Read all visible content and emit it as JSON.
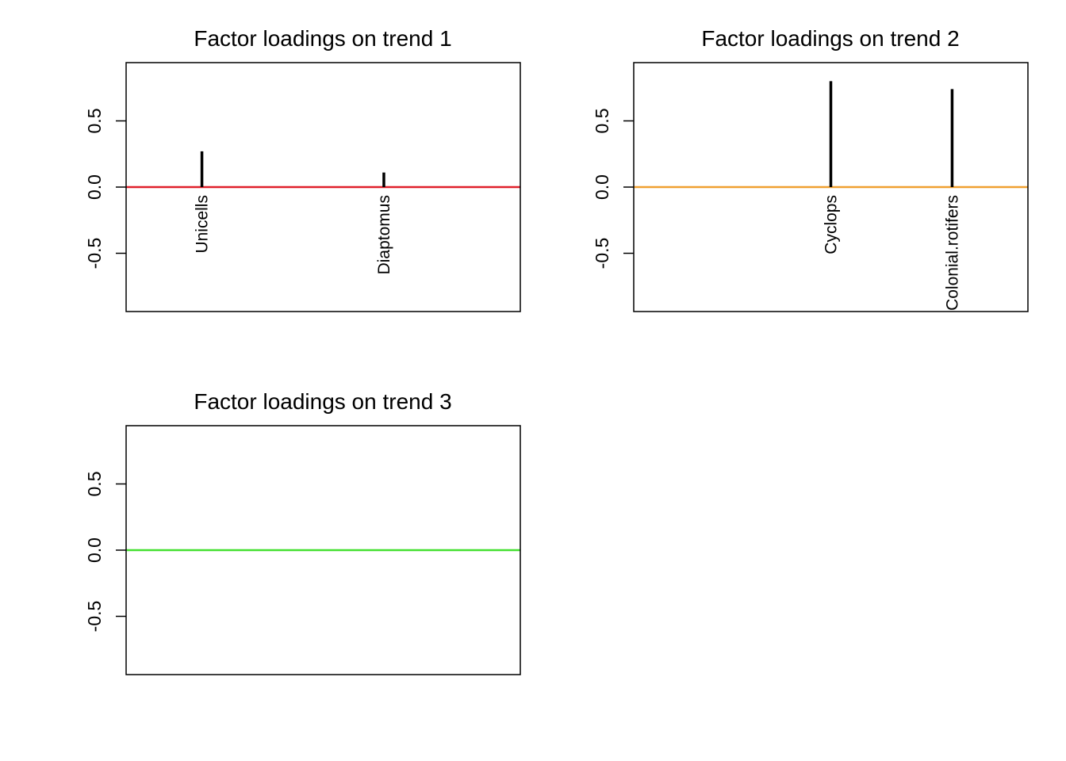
{
  "chart_data": [
    {
      "type": "bar",
      "title": "Factor loadings on trend 1",
      "xlabel": "",
      "ylabel": "",
      "ylim": [
        -0.94,
        0.94
      ],
      "yticks": [
        "-0.5",
        "0.0",
        "0.5"
      ],
      "ytick_values": [
        -0.5,
        0.0,
        0.5
      ],
      "grid": false,
      "reference_line": {
        "y": 0,
        "color": "#e0202a"
      },
      "categories": [
        "Unicells",
        "Diaptomus"
      ],
      "x": [
        2,
        5
      ],
      "values": [
        0.27,
        0.11
      ],
      "xlim": [
        0.75,
        7.25
      ]
    },
    {
      "type": "bar",
      "title": "Factor loadings on trend 2",
      "xlabel": "",
      "ylabel": "",
      "ylim": [
        -0.94,
        0.94
      ],
      "yticks": [
        "-0.5",
        "0.0",
        "0.5"
      ],
      "ytick_values": [
        -0.5,
        0.0,
        0.5
      ],
      "grid": false,
      "reference_line": {
        "y": 0,
        "color": "#f0a030"
      },
      "categories": [
        "Cyclops",
        "Colonial.rotifers"
      ],
      "x": [
        4,
        6
      ],
      "values": [
        0.8,
        0.74
      ],
      "xlim": [
        0.75,
        7.25
      ]
    },
    {
      "type": "bar",
      "title": "Factor loadings on trend 3",
      "xlabel": "",
      "ylabel": "",
      "ylim": [
        -0.94,
        0.94
      ],
      "yticks": [
        "-0.5",
        "0.0",
        "0.5"
      ],
      "ytick_values": [
        -0.5,
        0.0,
        0.5
      ],
      "grid": false,
      "reference_line": {
        "y": 0,
        "color": "#44e030"
      },
      "categories": [],
      "x": [],
      "values": [],
      "xlim": [
        0.75,
        7.25
      ]
    }
  ]
}
